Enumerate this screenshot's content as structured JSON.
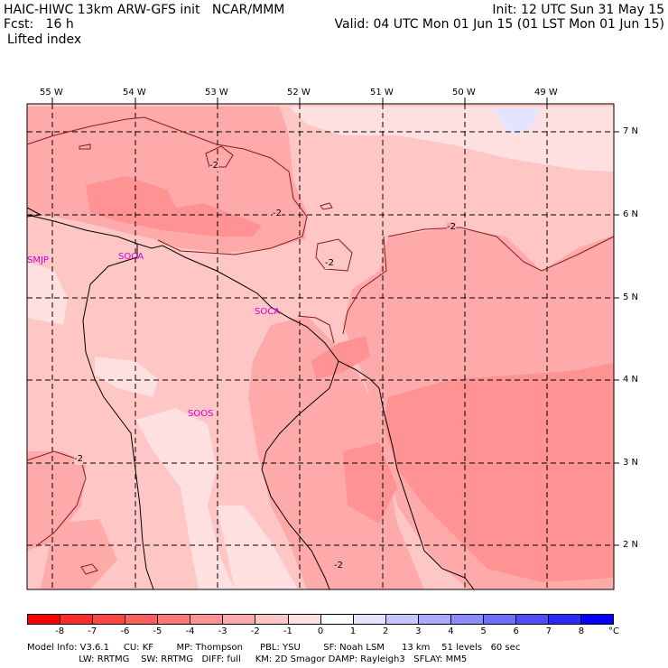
{
  "header": {
    "line1_left": "HAIC-HIWC 13km ARW-GFS init   NCAR/MMM",
    "line1_right": "Init: 12 UTC Sun 31 May 15",
    "line2_left": "Fcst:   16 h",
    "line2_right": "Valid: 04 UTC Mon 01 Jun 15 (01 LST Mon 01 Jun 15)",
    "field": "Lifted index"
  },
  "map": {
    "lon_labels": [
      "55 W",
      "54 W",
      "53 W",
      "52 W",
      "51 W",
      "50 W",
      "49 W"
    ],
    "lat_labels": [
      "7 N",
      "6 N",
      "5 N",
      "4 N",
      "3 N",
      "2 N"
    ],
    "stations": [
      "SMJP",
      "SOCA",
      "SOCA",
      "SOOS"
    ],
    "contour_labels": [
      "-2",
      "-2",
      "-2",
      "-2",
      "-2",
      "-2"
    ]
  },
  "colorbar": {
    "labels": [
      "-8",
      "-7",
      "-6",
      "-5",
      "-4",
      "-3",
      "-2",
      "-1",
      "0",
      "1",
      "2",
      "3",
      "4",
      "5",
      "6",
      "7",
      "8"
    ],
    "unit": "°C",
    "colors": [
      "#ff0000",
      "#ff2a2a",
      "#ff4646",
      "#ff5e5e",
      "#ff7878",
      "#ff9292",
      "#ffaaaa",
      "#ffc6c6",
      "#ffe0e0",
      "#ffffff",
      "#e4e4ff",
      "#c6c6ff",
      "#aaaaff",
      "#8c8cff",
      "#6e6eff",
      "#4e4eff",
      "#2a2aff",
      "#0000ff"
    ]
  },
  "footer": {
    "line1": "Model Info: V3.6.1     CU: KF        MP: Thompson      PBL: YSU        SF: Noah LSM      13 km    51 levels   60 sec",
    "line2": "                  LW: RRTMG    SW: RRTMG   DIFF: full     KM: 2D Smagor DAMP: Rayleigh3   SFLAY: MM5"
  }
}
